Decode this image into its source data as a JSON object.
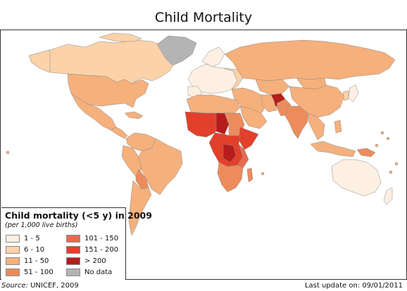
{
  "title": "Child Mortality",
  "colors": {
    "c1": "#fdf0e2",
    "c2": "#fcd2a8",
    "c3": "#f5b07c",
    "c4": "#ec8c5c",
    "c5": "#e96a52",
    "c6": "#e2402a",
    "c7": "#b71c1c",
    "nodata": "#b4b4b4",
    "border": "#8a8a8a"
  },
  "legend": {
    "title": "Child mortality (<5 y) in 2009",
    "subtitle": "(per 1,000 live births)",
    "items": [
      {
        "label": "1 - 5",
        "color": "#fdf0e2"
      },
      {
        "label": "6 - 10",
        "color": "#fcd2a8"
      },
      {
        "label": "11 - 50",
        "color": "#f5b07c"
      },
      {
        "label": "51 - 100",
        "color": "#ec8c5c"
      },
      {
        "label": "101 - 150",
        "color": "#e96a52"
      },
      {
        "label": "151 - 200",
        "color": "#e2402a"
      },
      {
        "label": "> 200",
        "color": "#b71c1c"
      },
      {
        "label": "No data",
        "color": "#b4b4b4"
      }
    ]
  },
  "footer": {
    "source_label": "Source:",
    "source_value": " UNICEF, 2009",
    "updated_label": "Last update on: 09/01/2011"
  }
}
